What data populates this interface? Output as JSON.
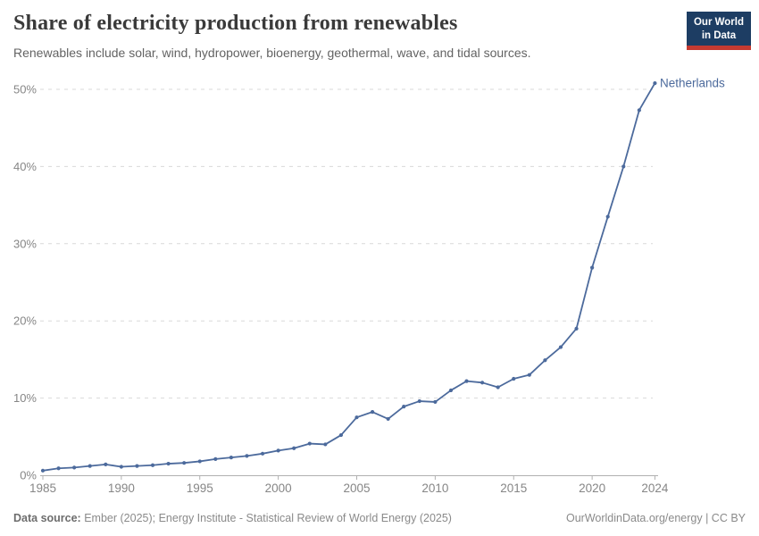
{
  "header": {
    "title": "Share of electricity production from renewables",
    "subtitle": "Renewables include solar, wind, hydropower, bioenergy, geothermal, wave, and tidal sources."
  },
  "logo": {
    "line1": "Our World",
    "line2": "in Data",
    "bg_color": "#1d3d63",
    "accent_color": "#c53a31"
  },
  "chart_data": {
    "type": "line",
    "title": "Share of electricity production from renewables",
    "subtitle": "Renewables include solar, wind, hydropower, bioenergy, geothermal, wave, and tidal sources.",
    "xlabel": "",
    "ylabel": "",
    "xlim": [
      1985,
      2024
    ],
    "ylim": [
      0,
      51
    ],
    "grid": "dashed-horizontal",
    "legend_position": "end-of-line-label",
    "x": [
      1985,
      1986,
      1987,
      1988,
      1989,
      1990,
      1991,
      1992,
      1993,
      1994,
      1995,
      1996,
      1997,
      1998,
      1999,
      2000,
      2001,
      2002,
      2003,
      2004,
      2005,
      2006,
      2007,
      2008,
      2009,
      2010,
      2011,
      2012,
      2013,
      2014,
      2015,
      2016,
      2017,
      2018,
      2019,
      2020,
      2021,
      2022,
      2023,
      2024
    ],
    "series": [
      {
        "name": "Netherlands",
        "color": "#4c6a9c",
        "values": [
          0.6,
          0.9,
          1.0,
          1.2,
          1.4,
          1.1,
          1.2,
          1.3,
          1.5,
          1.6,
          1.8,
          2.1,
          2.3,
          2.5,
          2.8,
          3.2,
          3.5,
          4.1,
          4.0,
          5.2,
          7.5,
          8.2,
          7.3,
          8.9,
          9.6,
          9.5,
          11.0,
          12.2,
          12.0,
          11.4,
          12.5,
          13.0,
          14.9,
          16.6,
          19.0,
          26.9,
          33.5,
          40.0,
          47.3,
          50.8
        ]
      }
    ],
    "y_ticks": {
      "values": [
        0,
        10,
        20,
        30,
        40,
        50
      ],
      "labels": [
        "0%",
        "10%",
        "20%",
        "30%",
        "40%",
        "50%"
      ]
    },
    "x_ticks": {
      "values": [
        1985,
        1990,
        1995,
        2000,
        2005,
        2010,
        2015,
        2020,
        2024
      ],
      "labels": [
        "1985",
        "1990",
        "1995",
        "2000",
        "2005",
        "2010",
        "2015",
        "2020",
        "2024"
      ]
    }
  },
  "footer": {
    "data_source_label": "Data source:",
    "data_source_text": "Ember (2025); Energy Institute - Statistical Review of World Energy (2025)",
    "credit": "OurWorldinData.org/energy | CC BY"
  },
  "colors": {
    "line": "#4c6a9c",
    "grid": "#d9d9d9",
    "axis": "#b0b0b0",
    "tick_label": "#868686",
    "title": "#3a3a3a",
    "subtitle": "#636363",
    "footer": "#8a8a8a"
  }
}
